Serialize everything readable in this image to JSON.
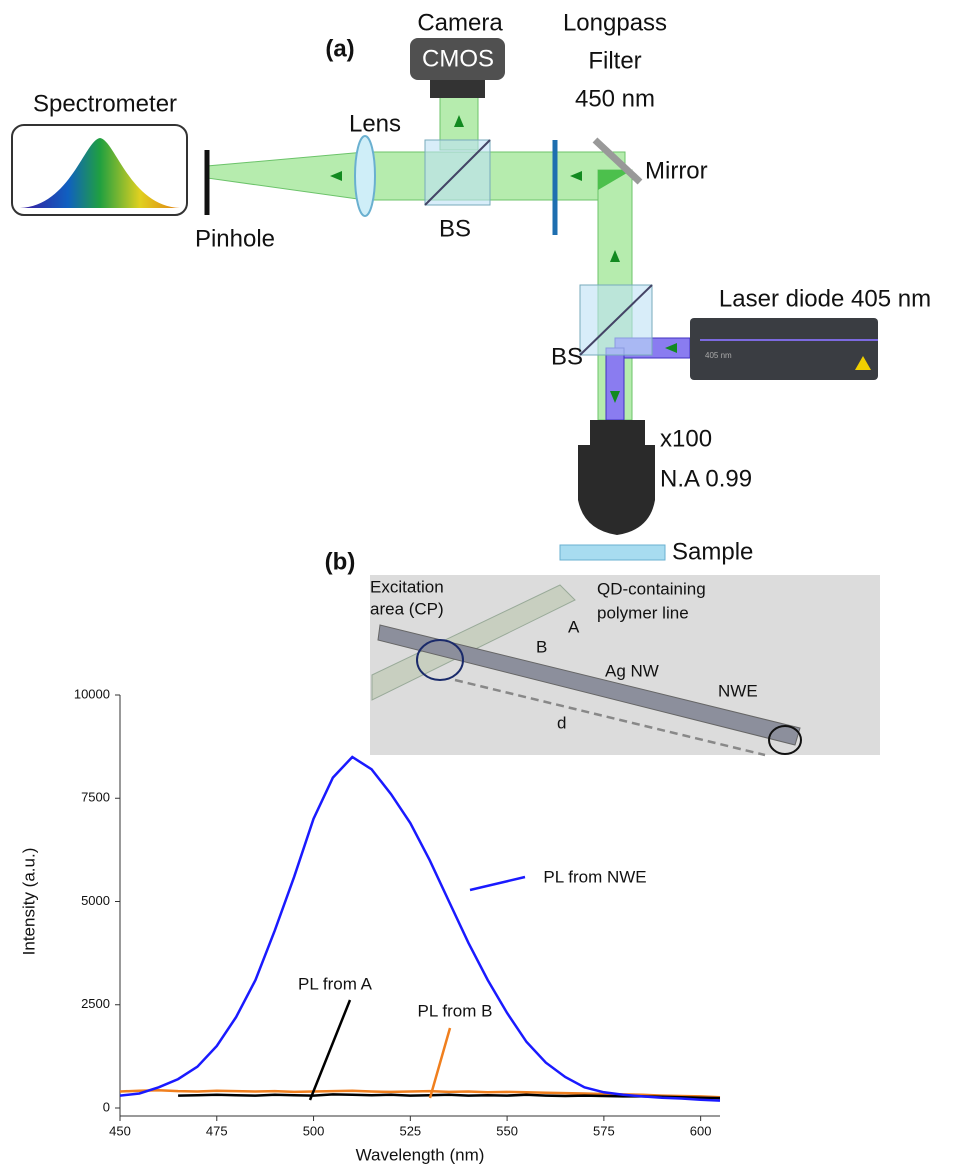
{
  "panel_a": {
    "label": "(a)",
    "camera": "Camera",
    "cmos": "CMOS",
    "filter": [
      "Longpass",
      "Filter",
      "450 nm"
    ],
    "spectrometer": "Spectrometer",
    "lens": "Lens",
    "bs_top": "BS",
    "mirror": "Mirror",
    "pinhole": "Pinhole",
    "laser": "Laser diode 405 nm",
    "laser_body": "405 nm",
    "bs_bottom": "BS",
    "objective": [
      "x100",
      "N.A 0.99"
    ],
    "sample": "Sample"
  },
  "panel_b": {
    "label": "(b)",
    "excitation": [
      "Excitation",
      "area (CP)"
    ],
    "polymer": [
      "QD-containing",
      "polymer line"
    ],
    "a": "A",
    "b": "B",
    "nw": "Ag NW",
    "nwe": "NWE",
    "d": "d"
  },
  "chart_data": {
    "type": "line",
    "x_label": "Wavelength (nm)",
    "y_label": "Intensity (a.u.)",
    "x": [
      450,
      455,
      460,
      465,
      470,
      475,
      480,
      485,
      490,
      495,
      500,
      505,
      510,
      515,
      520,
      525,
      530,
      535,
      540,
      545,
      550,
      555,
      560,
      565,
      570,
      575,
      580,
      585,
      590,
      595,
      600,
      605
    ],
    "series": [
      {
        "name": "PL from B",
        "color": "#f07f1e",
        "values": [
          400,
          420,
          430,
          410,
          400,
          420,
          410,
          400,
          410,
          390,
          400,
          410,
          420,
          400,
          390,
          400,
          410,
          390,
          400,
          380,
          390,
          380,
          370,
          360,
          350,
          340,
          330,
          320,
          300,
          290,
          280,
          260
        ]
      },
      {
        "name": "PL from A",
        "color": "#000000",
        "values": [
          null,
          null,
          null,
          300,
          310,
          320,
          310,
          300,
          320,
          310,
          300,
          330,
          320,
          310,
          320,
          300,
          310,
          320,
          300,
          310,
          300,
          320,
          300,
          290,
          300,
          290,
          280,
          280,
          270,
          260,
          250,
          240
        ]
      },
      {
        "name": "PL from NWE",
        "color": "#1a1aff",
        "values": [
          300,
          350,
          500,
          700,
          1000,
          1500,
          2200,
          3100,
          4300,
          5600,
          7000,
          8000,
          8500,
          8200,
          7600,
          6900,
          6000,
          5000,
          4000,
          3100,
          2300,
          1600,
          1100,
          750,
          500,
          380,
          320,
          280,
          250,
          230,
          200,
          180
        ]
      }
    ],
    "xlim": [
      450,
      605
    ],
    "ylim": [
      0,
      10000
    ],
    "xticks": [
      450,
      475,
      500,
      525,
      550,
      575,
      600
    ],
    "yticks": [
      0,
      2500,
      5000,
      7500,
      10000
    ]
  }
}
